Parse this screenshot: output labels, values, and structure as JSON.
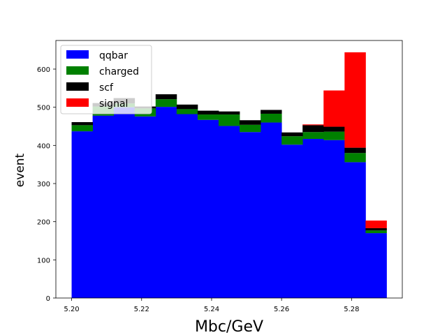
{
  "chart_data": {
    "type": "bar",
    "stacked": true,
    "bin_edges": [
      5.2,
      5.206,
      5.212,
      5.218,
      5.224,
      5.23,
      5.236,
      5.242,
      5.248,
      5.254,
      5.26,
      5.266,
      5.272,
      5.278,
      5.284,
      5.29
    ],
    "series": [
      {
        "name": "qqbar",
        "color": "#0000ff",
        "values": [
          437,
          478,
          500,
          476,
          501,
          482,
          467,
          451,
          435,
          460,
          402,
          417,
          414,
          356,
          170
        ]
      },
      {
        "name": "charged",
        "color": "#008000",
        "values": [
          16,
          24,
          10,
          21,
          20,
          13,
          14,
          30,
          19,
          23,
          22,
          18,
          22,
          24,
          7
        ]
      },
      {
        "name": "scf",
        "color": "#000000",
        "values": [
          8,
          9,
          14,
          5,
          13,
          12,
          10,
          8,
          12,
          10,
          10,
          18,
          13,
          14,
          6
        ]
      },
      {
        "name": "signal",
        "color": "#ff0000",
        "values": [
          0,
          0,
          0,
          0,
          0,
          0,
          0,
          0,
          0,
          0,
          0,
          2,
          95,
          250,
          20
        ]
      }
    ],
    "xlabel": "Mbc/GeV",
    "ylabel": "event",
    "xlim": [
      5.1955,
      5.2945
    ],
    "ylim": [
      0,
      675
    ],
    "xticks": [
      "5.20",
      "5.22",
      "5.24",
      "5.26",
      "5.28"
    ],
    "xtick_values": [
      5.2,
      5.22,
      5.24,
      5.26,
      5.28
    ],
    "yticks": [
      0,
      100,
      200,
      300,
      400,
      500,
      600
    ],
    "legend_position": "top-left",
    "grid": false
  }
}
